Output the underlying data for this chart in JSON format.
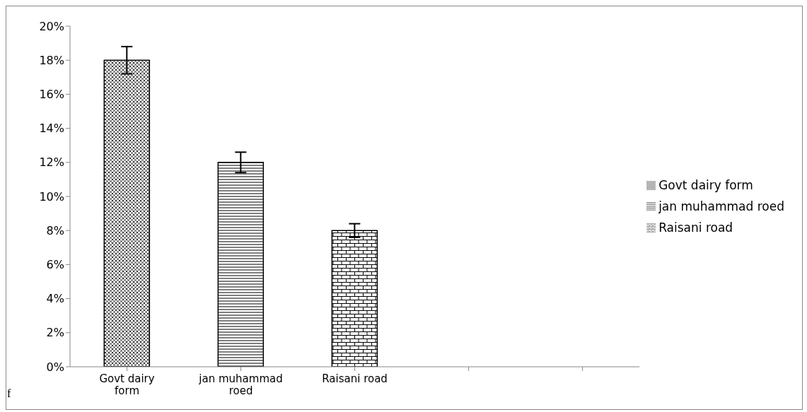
{
  "chart_data": {
    "type": "bar",
    "categories": [
      "Govt dairy form",
      "jan muhammad roed",
      "Raisani road",
      null,
      null
    ],
    "series": [
      {
        "name": "Govt dairy form",
        "color": "#000000",
        "values": [
          18,
          null,
          null,
          null,
          null
        ],
        "errors": [
          0.8,
          null,
          null,
          null,
          null
        ]
      },
      {
        "name": "jan muhammad roed",
        "color": "#000000",
        "values": [
          null,
          12,
          null,
          null,
          null
        ],
        "errors": [
          null,
          0.6,
          null,
          null,
          null
        ]
      },
      {
        "name": "Raisani road",
        "color": "#000000",
        "values": [
          null,
          null,
          8,
          null,
          null
        ],
        "errors": [
          null,
          null,
          0.4,
          null,
          null
        ]
      }
    ],
    "stacked": true,
    "ylim": [
      0,
      20
    ],
    "yticks": [
      {
        "value": 0,
        "label": "0%"
      },
      {
        "value": 2,
        "label": "2%"
      },
      {
        "value": 4,
        "label": "4%"
      },
      {
        "value": 6,
        "label": "6%"
      },
      {
        "value": 8,
        "label": "8%"
      },
      {
        "value": 10,
        "label": "10%"
      },
      {
        "value": 12,
        "label": "12%"
      },
      {
        "value": 14,
        "label": "14%"
      },
      {
        "value": 16,
        "label": "16%"
      },
      {
        "value": 18,
        "label": "18%"
      },
      {
        "value": 20,
        "label": "20%"
      }
    ],
    "grid": false,
    "legend": "right",
    "annotations": [
      "f"
    ]
  }
}
